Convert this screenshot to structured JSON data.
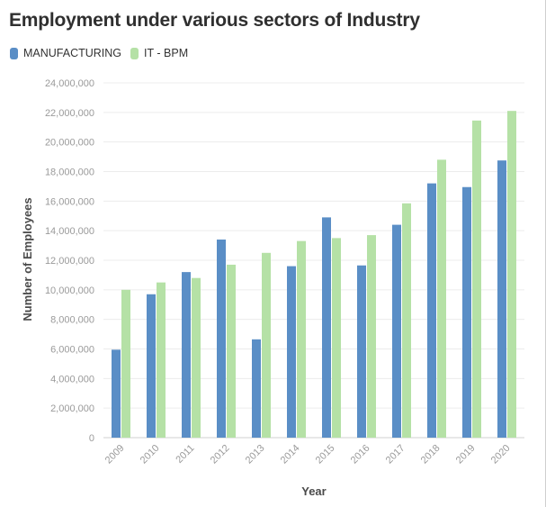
{
  "chart_data": {
    "type": "bar",
    "title": "Employment under various sectors of Industry",
    "xlabel": "Year",
    "ylabel": "Number of Employees",
    "categories": [
      "2009",
      "2010",
      "2011",
      "2012",
      "2013",
      "2014",
      "2015",
      "2016",
      "2017",
      "2018",
      "2019",
      "2020"
    ],
    "series": [
      {
        "name": "MANUFACTURING",
        "color": "#5a8ec6",
        "values": [
          5950000,
          9700000,
          11200000,
          13400000,
          6650000,
          11600000,
          14900000,
          11650000,
          14400000,
          17200000,
          16950000,
          18750000
        ]
      },
      {
        "name": "IT - BPM",
        "color": "#b5e1a6",
        "values": [
          10000000,
          10500000,
          10800000,
          11700000,
          12500000,
          13300000,
          13500000,
          13700000,
          15850000,
          18800000,
          21450000,
          22100000
        ]
      }
    ],
    "ylim": [
      0,
      24000000
    ],
    "yticks": [
      0,
      2000000,
      4000000,
      6000000,
      8000000,
      10000000,
      12000000,
      14000000,
      16000000,
      18000000,
      20000000,
      22000000,
      24000000
    ],
    "grid": true,
    "legend": "top-left"
  }
}
